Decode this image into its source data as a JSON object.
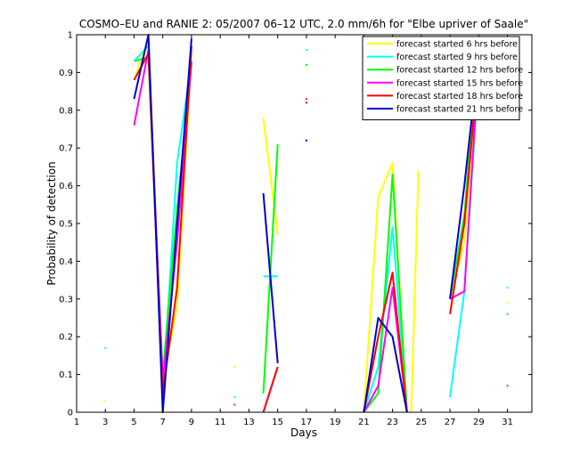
{
  "chart_data": {
    "type": "line",
    "title": "COSMO–EU and RANIE 2: 05/2007 06–12 UTC, 2.0 mm/6h for \"Elbe upriver of Saale\"",
    "xlabel": "Days",
    "ylabel": "Probability of detection",
    "xlim": [
      1,
      32.7
    ],
    "ylim": [
      0,
      1
    ],
    "xticks": [
      1,
      3,
      5,
      7,
      9,
      11,
      13,
      15,
      17,
      19,
      21,
      23,
      25,
      27,
      29,
      31
    ],
    "yticks": [
      0,
      0.1,
      0.2,
      0.3,
      0.4,
      0.5,
      0.6,
      0.7,
      0.8,
      0.9,
      1
    ],
    "grid": false,
    "legend_position": "top-right",
    "series": [
      {
        "name": "forecast started 6 hrs before",
        "color": "#ffff00",
        "segments": [
          [
            [
              5,
              0.88
            ],
            [
              6,
              0.99
            ],
            [
              7,
              0.08
            ],
            [
              8,
              0.28
            ],
            [
              9,
              0.95
            ]
          ],
          [
            [
              14,
              0.78
            ],
            [
              15,
              0.47
            ]
          ],
          [
            [
              21,
              0.0
            ],
            [
              22,
              0.57
            ],
            [
              23,
              0.66
            ],
            [
              24,
              0.0
            ]
          ],
          [
            [
              24.3,
              0.0
            ],
            [
              24.8,
              0.64
            ]
          ],
          [
            [
              27,
              0.3
            ],
            [
              28,
              0.45
            ],
            [
              29,
              0.95
            ]
          ]
        ],
        "dots": [
          [
            3,
            0.03
          ],
          [
            12,
            0.12
          ],
          [
            17,
            1.0
          ],
          [
            31,
            0.29
          ]
        ]
      },
      {
        "name": "forecast started 9 hrs before",
        "color": "#00ffff",
        "segments": [
          [
            [
              5,
              0.93
            ],
            [
              6,
              0.97
            ],
            [
              7,
              0.05
            ],
            [
              8,
              0.66
            ],
            [
              9,
              0.93
            ]
          ],
          [
            [
              14,
              0.36
            ],
            [
              15,
              0.36
            ]
          ],
          [
            [
              21,
              0.0
            ],
            [
              22,
              0.12
            ],
            [
              23,
              0.49
            ],
            [
              24,
              0.0
            ]
          ],
          [
            [
              27,
              0.04
            ],
            [
              28,
              0.32
            ],
            [
              29,
              0.9
            ]
          ]
        ],
        "dots": [
          [
            3,
            0.17
          ],
          [
            12,
            0.04
          ],
          [
            17,
            0.96
          ],
          [
            31,
            0.33
          ]
        ]
      },
      {
        "name": "forecast started 12 hrs before",
        "color": "#00ff00",
        "segments": [
          [
            [
              5,
              0.93
            ],
            [
              6,
              0.94
            ],
            [
              7,
              0.1
            ],
            [
              8,
              0.54
            ],
            [
              9,
              0.92
            ]
          ],
          [
            [
              14,
              0.05
            ],
            [
              15,
              0.71
            ]
          ],
          [
            [
              21,
              0.0
            ],
            [
              22,
              0.05
            ],
            [
              23,
              0.63
            ],
            [
              24,
              0.0
            ]
          ],
          [
            [
              27,
              0.3
            ],
            [
              28,
              0.52
            ],
            [
              29,
              0.99
            ]
          ]
        ],
        "dots": [
          [
            17,
            0.92
          ],
          [
            31,
            0.26
          ]
        ]
      },
      {
        "name": "forecast started 15 hrs before",
        "color": "#ff00ff",
        "segments": [
          [
            [
              5,
              0.76
            ],
            [
              6,
              0.96
            ],
            [
              7,
              0.08
            ],
            [
              8,
              0.45
            ],
            [
              9,
              0.93
            ]
          ],
          [
            [
              14,
              0.0
            ],
            [
              15,
              0.12
            ]
          ],
          [
            [
              21,
              0.0
            ],
            [
              22,
              0.07
            ],
            [
              23,
              0.33
            ],
            [
              24,
              0.0
            ]
          ],
          [
            [
              27,
              0.3
            ],
            [
              28,
              0.32
            ],
            [
              29,
              0.93
            ]
          ]
        ],
        "dots": [
          [
            12,
            0.02
          ],
          [
            17,
            0.83
          ],
          [
            31,
            0.07
          ]
        ]
      },
      {
        "name": "forecast started 18 hrs before",
        "color": "#ff0000",
        "segments": [
          [
            [
              5,
              0.88
            ],
            [
              6,
              0.95
            ],
            [
              7,
              0.05
            ],
            [
              8,
              0.33
            ],
            [
              9,
              0.97
            ]
          ],
          [
            [
              14,
              0.0
            ],
            [
              15,
              0.12
            ]
          ],
          [
            [
              21,
              0.0
            ],
            [
              22,
              0.2
            ],
            [
              23,
              0.37
            ],
            [
              24,
              0.0
            ]
          ],
          [
            [
              27,
              0.26
            ],
            [
              28,
              0.5
            ],
            [
              29,
              0.93
            ]
          ]
        ],
        "dots": [
          [
            17,
            0.82
          ]
        ]
      },
      {
        "name": "forecast started 21 hrs before",
        "color": "#0000cc",
        "segments": [
          [
            [
              5,
              0.83
            ],
            [
              6,
              1.0
            ],
            [
              7,
              0.0
            ],
            [
              8,
              0.5
            ],
            [
              9,
              0.99
            ]
          ],
          [
            [
              14,
              0.58
            ],
            [
              15,
              0.13
            ]
          ],
          [
            [
              21,
              0.0
            ],
            [
              22,
              0.25
            ],
            [
              23,
              0.2
            ],
            [
              24,
              0.0
            ]
          ],
          [
            [
              27,
              0.3
            ],
            [
              28,
              0.6
            ],
            [
              29,
              0.95
            ]
          ]
        ],
        "dots": [
          [
            17,
            0.72
          ]
        ]
      }
    ]
  }
}
